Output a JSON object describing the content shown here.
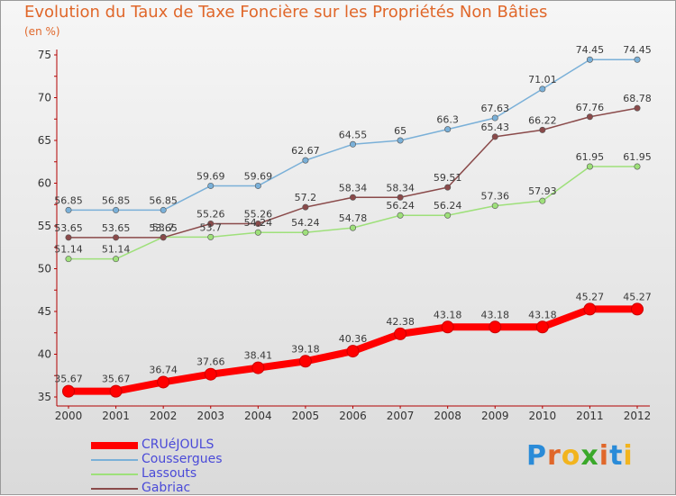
{
  "header": {
    "title": "Evolution du Taux de Taxe Foncière sur les Propriétés Non Bâties",
    "unit": "(en %)"
  },
  "logo": {
    "letters": [
      "P",
      "r",
      "o",
      "x",
      "i",
      "t",
      "i"
    ],
    "colors": [
      "#2a8bd8",
      "#e0672a",
      "#f2b41e",
      "#3aa82a",
      "#e0672a",
      "#2a8bd8",
      "#f2b41e"
    ]
  },
  "chart_data": {
    "type": "line",
    "categories": [
      "2000",
      "2001",
      "2002",
      "2003",
      "2004",
      "2005",
      "2006",
      "2007",
      "2008",
      "2009",
      "2010",
      "2011",
      "2012"
    ],
    "ylim": [
      35,
      75
    ],
    "yticks": [
      35,
      40,
      45,
      50,
      55,
      60,
      65,
      70,
      75
    ],
    "grid": false,
    "legend_position": "bottom-left",
    "series": [
      {
        "name": "CRUéJOULS",
        "color": "#ff0000",
        "values": [
          35.67,
          35.67,
          36.74,
          37.66,
          38.41,
          39.18,
          40.36,
          42.38,
          43.18,
          43.18,
          43.18,
          45.27,
          45.27
        ],
        "labels": [
          "35.67",
          "35.67",
          "36.74",
          "37.66",
          "38.41",
          "39.18",
          "40.36",
          "42.38",
          "43.18",
          "43.18",
          "43.18",
          "45.27",
          "45.27"
        ]
      },
      {
        "name": "Coussergues",
        "color": "#7ab0d8",
        "values": [
          56.85,
          56.85,
          56.85,
          59.69,
          59.69,
          62.67,
          64.55,
          65.0,
          66.3,
          67.63,
          71.01,
          74.45,
          74.45
        ],
        "labels": [
          "56.85",
          "56.85",
          "56.85",
          "59.69",
          "59.69",
          "62.67",
          "64.55",
          "65",
          "66.3",
          "67.63",
          "71.01",
          "74.45",
          "74.45"
        ]
      },
      {
        "name": "Lassouts",
        "color": "#9ee07a",
        "values": [
          51.14,
          51.14,
          53.7,
          53.7,
          54.24,
          54.24,
          54.78,
          56.24,
          56.24,
          57.36,
          57.93,
          61.95,
          61.95
        ],
        "labels": [
          "51.14",
          "51.14",
          "53.7",
          "53.7",
          "54.24",
          "54.24",
          "54.78",
          "56.24",
          "56.24",
          "57.36",
          "57.93",
          "61.95",
          "61.95"
        ]
      },
      {
        "name": "Gabriac",
        "color": "#8a4a4a",
        "values": [
          53.65,
          53.65,
          53.65,
          55.26,
          55.26,
          57.2,
          58.34,
          58.34,
          59.51,
          65.43,
          66.22,
          67.76,
          68.78
        ],
        "labels": [
          "53.65",
          "53.65",
          "53.65",
          "55.26",
          "55.26",
          "57.2",
          "58.34",
          "58.34",
          "59.51",
          "65.43",
          "66.22",
          "67.76",
          "68.78"
        ]
      }
    ]
  }
}
